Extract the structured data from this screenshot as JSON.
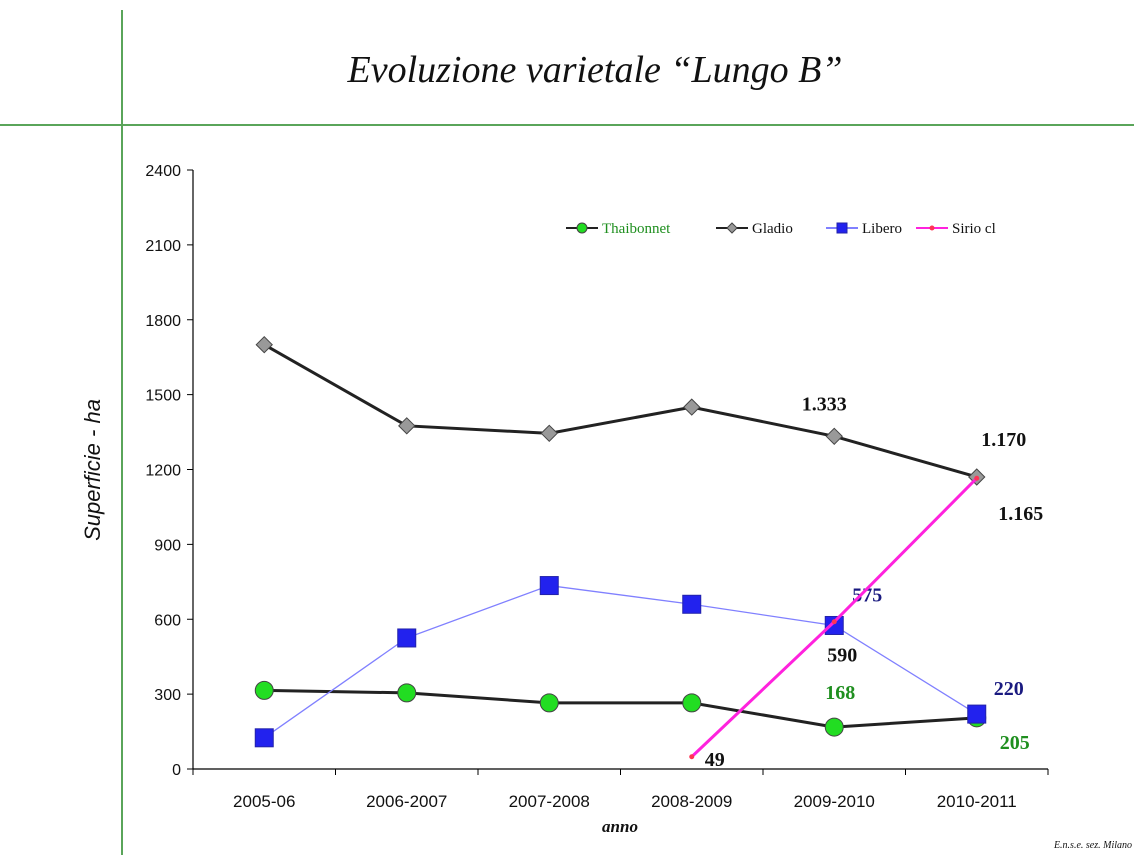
{
  "chart_data": {
    "type": "line",
    "title": "Evoluzione varietale “Lungo B”",
    "y_label": "Superficie - ha",
    "x_label": "anno",
    "footer": "E.n.s.e. sez. Milano",
    "categories": [
      "2005-06",
      "2006-2007",
      "2007-2008",
      "2008-2009",
      "2009-2010",
      "2010-2011"
    ],
    "ylim": [
      0,
      2400
    ],
    "yticks": [
      0,
      300,
      600,
      900,
      1200,
      1500,
      1800,
      2100,
      2400
    ],
    "legend": "top-right",
    "grid": false,
    "series": [
      {
        "name": "Thaibonnet",
        "color": "#222222",
        "marker": "circle",
        "marker_color": "#22dd22",
        "label_color": "#1f8f1f",
        "values": [
          315,
          305,
          265,
          265,
          168,
          205
        ],
        "value_labels": [
          null,
          null,
          null,
          null,
          "168",
          "205"
        ]
      },
      {
        "name": "Gladio",
        "color": "#222222",
        "marker": "diamond",
        "marker_color": "#999999",
        "label_color": "#111111",
        "values": [
          1700,
          1375,
          1345,
          1450,
          1333,
          1170
        ],
        "value_labels": [
          null,
          null,
          null,
          null,
          "1.333",
          "1.170"
        ]
      },
      {
        "name": "Libero",
        "color": "#8080ff",
        "marker": "square",
        "marker_color": "#2222ee",
        "label_color": "#1a1a80",
        "values": [
          125,
          525,
          735,
          660,
          575,
          220
        ],
        "value_labels": [
          null,
          null,
          null,
          null,
          "575",
          "220"
        ]
      },
      {
        "name": "Sirio cl",
        "color": "#ff22dd",
        "marker": "dot",
        "marker_color": "#ff3355",
        "label_color": "#111111",
        "values": [
          null,
          null,
          null,
          49,
          590,
          1165
        ],
        "value_labels": [
          null,
          null,
          null,
          "49",
          "590",
          "1.165"
        ]
      }
    ]
  }
}
